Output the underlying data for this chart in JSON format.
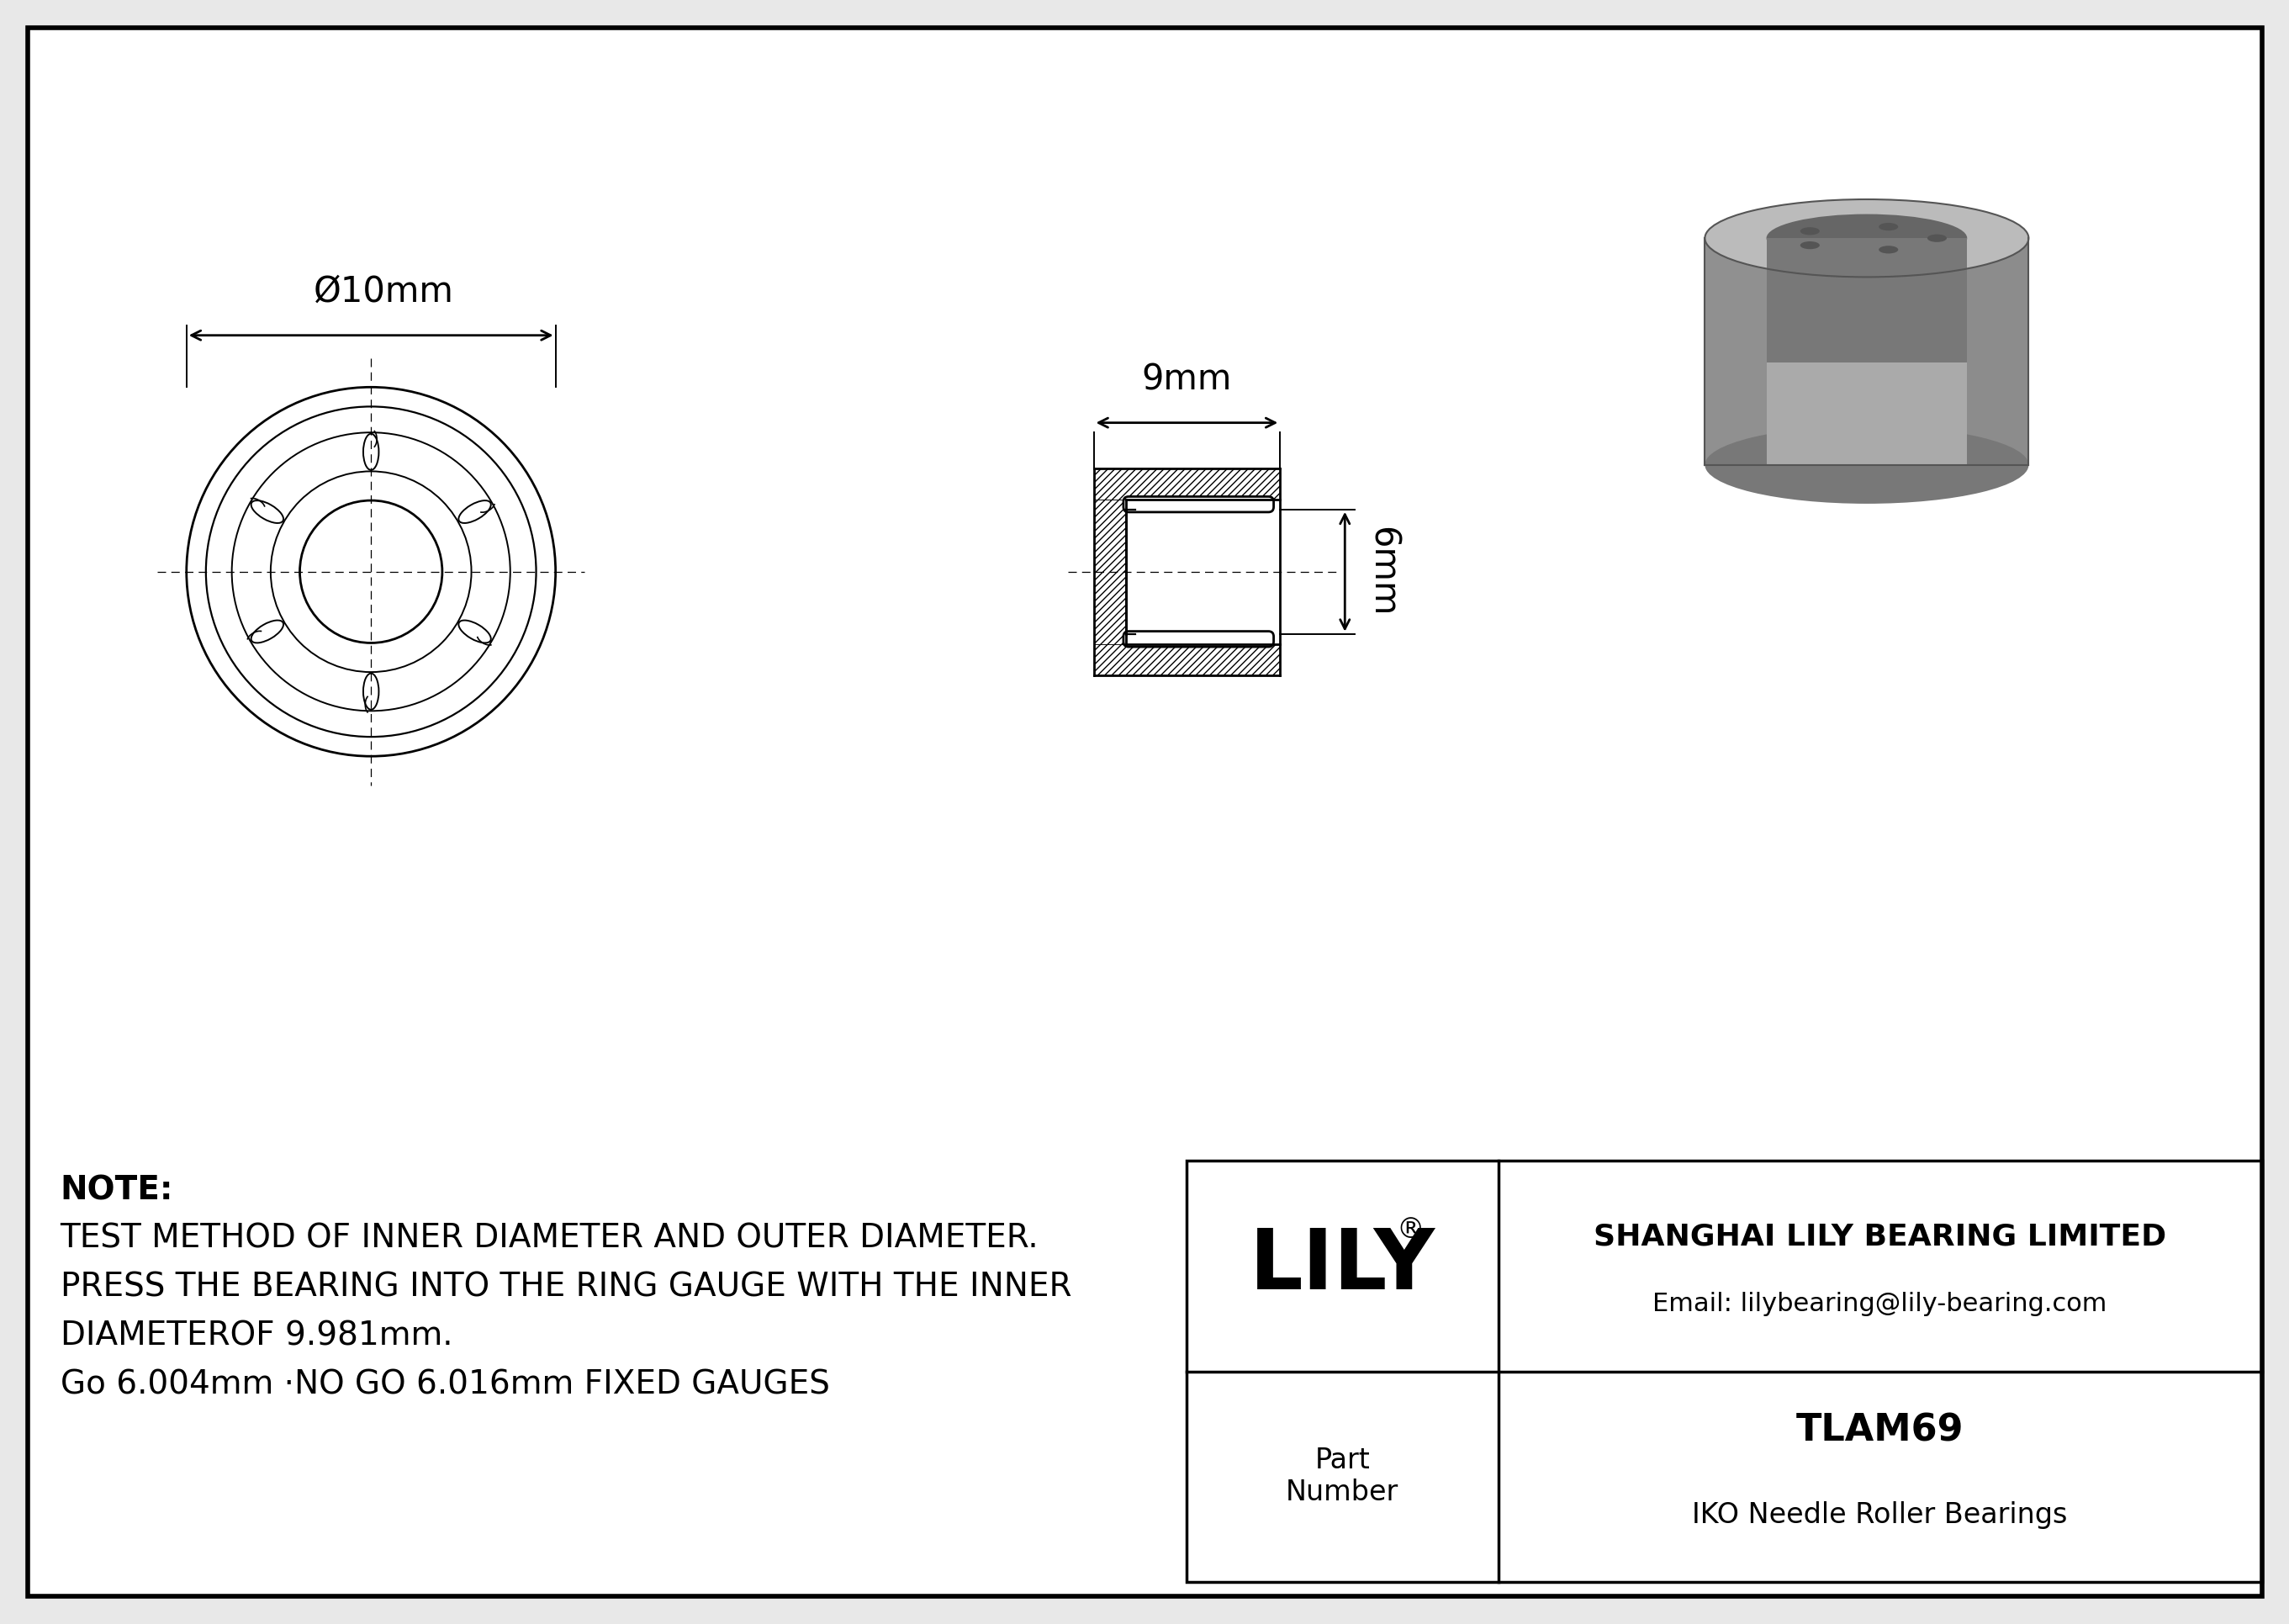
{
  "bg_color": "#e8e8e8",
  "sheet_color": "#ffffff",
  "line_color": "#000000",
  "note_line1": "NOTE:",
  "note_line2": "TEST METHOD OF INNER DIAMETER AND OUTER DIAMETER.",
  "note_line3": "PRESS THE BEARING INTO THE RING GAUGE WITH THE INNER",
  "note_line4": "DIAMETEROF 9.981mm.",
  "note_line5": "Go 6.004mm ·NO GO 6.016mm FIXED GAUGES",
  "company_name": "SHANGHAI LILY BEARING LIMITED",
  "company_email": "Email: lilybearing@lily-bearing.com",
  "part_number_label": "Part\nNumber",
  "part_number": "TLAM69",
  "bearing_type": "IKO Needle Roller Bearings",
  "lily_logo": "LILY",
  "dim_outer": "Ø10mm",
  "dim_width": "9mm",
  "dim_height": "6mm"
}
